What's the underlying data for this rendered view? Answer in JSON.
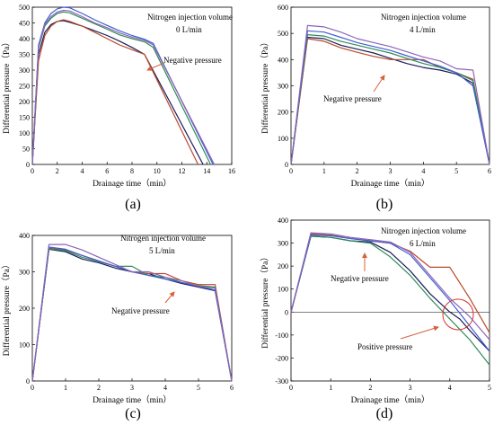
{
  "colors": {
    "series": [
      "#1b1b5c",
      "#b84a2a",
      "#2e8b57",
      "#3e5fd0",
      "#8e63b8"
    ],
    "arrow": "#d7603d",
    "circle": "#d9302c"
  },
  "chart_data": [
    {
      "type": "line",
      "panel_label": "(a)",
      "annotation_title": "Nitrogen injection volume",
      "annotation_value": "0 L/min",
      "pressure_note": "Negative pressure",
      "xlabel": "Drainage time（min）",
      "ylabel": "Differential pressure（Pa）",
      "xlim": [
        0,
        16
      ],
      "ylim": [
        0,
        500
      ],
      "xticks": [
        0,
        2,
        4,
        6,
        8,
        10,
        12,
        14,
        16
      ],
      "yticks": [
        0,
        50,
        100,
        150,
        200,
        250,
        300,
        350,
        400,
        450,
        500
      ],
      "series": [
        {
          "x": [
            0,
            0.5,
            1,
            1.5,
            2,
            2.5,
            3,
            4,
            5,
            6,
            7,
            8,
            9,
            13.7
          ],
          "y": [
            0,
            350,
            420,
            445,
            455,
            457,
            452,
            440,
            425,
            410,
            392,
            372,
            350,
            0
          ]
        },
        {
          "x": [
            0,
            0.5,
            1,
            1.5,
            2,
            2.5,
            3,
            4,
            5,
            6,
            7,
            8,
            9,
            13.3
          ],
          "y": [
            0,
            330,
            410,
            440,
            455,
            460,
            455,
            440,
            420,
            400,
            380,
            365,
            350,
            0
          ]
        },
        {
          "x": [
            0,
            0.5,
            1,
            1.5,
            2,
            2.5,
            3,
            4,
            5,
            6,
            7,
            8,
            9,
            9.7,
            14.3
          ],
          "y": [
            0,
            370,
            440,
            465,
            480,
            485,
            482,
            465,
            447,
            430,
            412,
            400,
            390,
            372,
            0
          ]
        },
        {
          "x": [
            0,
            0.5,
            1,
            1.5,
            2,
            2.5,
            3,
            4,
            5,
            6,
            7,
            8,
            9,
            9.7,
            14.5
          ],
          "y": [
            0,
            380,
            450,
            480,
            495,
            500,
            498,
            480,
            460,
            442,
            425,
            410,
            398,
            385,
            0
          ]
        },
        {
          "x": [
            0,
            0.5,
            1,
            1.5,
            2,
            2.5,
            3,
            4,
            5,
            6,
            7,
            8,
            9,
            9.7,
            14.6
          ],
          "y": [
            0,
            375,
            445,
            470,
            485,
            490,
            488,
            470,
            450,
            435,
            418,
            405,
            395,
            380,
            0
          ]
        }
      ]
    },
    {
      "type": "line",
      "panel_label": "(b)",
      "annotation_title": "Nitrogen injection volume",
      "annotation_value": "4 L/min",
      "pressure_note": "Negative pressure",
      "xlabel": "Drainage time（min）",
      "ylabel": "Differential pressure（Pa）",
      "xlim": [
        0,
        6
      ],
      "ylim": [
        0,
        600
      ],
      "xticks": [
        0,
        1,
        2,
        3,
        4,
        5,
        6
      ],
      "yticks": [
        0,
        100,
        200,
        300,
        400,
        500,
        600
      ],
      "series": [
        {
          "x": [
            0,
            0.5,
            1,
            1.5,
            2,
            2.5,
            3,
            3.5,
            4,
            4.5,
            5,
            5.5,
            6
          ],
          "y": [
            0,
            485,
            480,
            455,
            440,
            425,
            405,
            385,
            370,
            360,
            345,
            310,
            0
          ]
        },
        {
          "x": [
            0,
            0.5,
            1,
            1.5,
            2,
            2.5,
            3,
            3.5,
            4,
            4.5,
            5,
            5.5,
            6
          ],
          "y": [
            0,
            480,
            470,
            445,
            428,
            412,
            400,
            400,
            400,
            370,
            350,
            325,
            0
          ]
        },
        {
          "x": [
            0,
            0.5,
            1,
            1.5,
            2,
            2.5,
            3,
            3.5,
            4,
            4.5,
            5,
            5.5,
            6
          ],
          "y": [
            0,
            495,
            490,
            470,
            455,
            440,
            425,
            405,
            385,
            370,
            350,
            320,
            0
          ]
        },
        {
          "x": [
            0,
            0.5,
            1,
            1.5,
            2,
            2.5,
            3,
            3.5,
            4,
            4.5,
            5,
            5.5,
            6
          ],
          "y": [
            0,
            510,
            505,
            485,
            465,
            450,
            435,
            415,
            395,
            375,
            350,
            300,
            0
          ]
        },
        {
          "x": [
            0,
            0.5,
            1,
            1.5,
            2,
            2.5,
            3,
            3.5,
            4,
            4.5,
            5,
            5.5,
            6
          ],
          "y": [
            0,
            530,
            525,
            505,
            480,
            465,
            450,
            430,
            410,
            395,
            365,
            360,
            0
          ]
        }
      ]
    },
    {
      "type": "line",
      "panel_label": "(c)",
      "annotation_title": "Nitrogen injection volume",
      "annotation_value": "5 L/min",
      "pressure_note": "Negative pressure",
      "xlabel": "Drainage time（min）",
      "ylabel": "Differential pressure（Pa）",
      "xlim": [
        0,
        6
      ],
      "ylim": [
        0,
        400
      ],
      "xticks": [
        0,
        1,
        2,
        3,
        4,
        5,
        6
      ],
      "yticks": [
        0,
        100,
        200,
        300,
        400
      ],
      "series": [
        {
          "x": [
            0,
            0.5,
            1,
            1.5,
            2,
            2.5,
            3,
            3.5,
            4,
            4.5,
            5,
            5.5,
            6
          ],
          "y": [
            0,
            362,
            355,
            335,
            325,
            310,
            300,
            295,
            280,
            268,
            258,
            248,
            0
          ]
        },
        {
          "x": [
            0,
            0.5,
            1,
            1.5,
            2,
            2.5,
            3,
            3.5,
            4,
            4.5,
            5,
            5.5,
            6
          ],
          "y": [
            0,
            365,
            360,
            345,
            330,
            315,
            300,
            295,
            295,
            275,
            265,
            265,
            0
          ]
        },
        {
          "x": [
            0,
            0.5,
            1,
            1.5,
            2,
            2.5,
            3,
            3.5,
            4,
            4.5,
            5,
            5.5,
            6
          ],
          "y": [
            0,
            363,
            358,
            340,
            328,
            315,
            315,
            290,
            285,
            270,
            262,
            258,
            0
          ]
        },
        {
          "x": [
            0,
            0.5,
            1,
            1.5,
            2,
            2.5,
            3,
            3.5,
            4,
            4.5,
            5,
            5.5,
            6
          ],
          "y": [
            0,
            368,
            362,
            345,
            330,
            315,
            300,
            290,
            280,
            270,
            260,
            250,
            0
          ]
        },
        {
          "x": [
            0,
            0.5,
            1,
            1.5,
            2,
            2.5,
            3,
            3.5,
            4,
            4.5,
            5,
            5.5,
            6
          ],
          "y": [
            0,
            375,
            375,
            360,
            340,
            320,
            300,
            300,
            285,
            275,
            260,
            255,
            0
          ]
        }
      ]
    },
    {
      "type": "line",
      "panel_label": "(d)",
      "annotation_title": "Nitrogen injection volume",
      "annotation_value": "6 L/min",
      "pressure_note": "Negative pressure",
      "pressure_note_2": "Positive pressure",
      "xlabel": "Drainage time（min）",
      "ylabel": "Differential pressure（Pa）",
      "xlim": [
        0,
        5
      ],
      "ylim": [
        -300,
        400
      ],
      "xticks": [
        0,
        1,
        2,
        3,
        4,
        5
      ],
      "yticks": [
        -300,
        -200,
        -100,
        0,
        100,
        200,
        300,
        400
      ],
      "series": [
        {
          "x": [
            0,
            0.5,
            1,
            1.5,
            2,
            2.5,
            3,
            3.5,
            4,
            4.25,
            4.5,
            5
          ],
          "y": [
            0,
            330,
            325,
            310,
            305,
            260,
            180,
            80,
            0,
            -30,
            -80,
            -170
          ]
        },
        {
          "x": [
            0,
            0.5,
            1,
            1.5,
            2,
            2.5,
            3,
            3.5,
            4,
            4.5,
            5
          ],
          "y": [
            0,
            340,
            335,
            320,
            310,
            300,
            265,
            195,
            195,
            60,
            -90
          ]
        },
        {
          "x": [
            0,
            0.5,
            1,
            1.5,
            2,
            2.5,
            3,
            3.5,
            4,
            4.5,
            5
          ],
          "y": [
            0,
            330,
            325,
            310,
            300,
            240,
            160,
            60,
            -30,
            -120,
            -230
          ]
        },
        {
          "x": [
            0,
            0.5,
            1,
            1.5,
            2,
            2.5,
            3,
            3.5,
            4,
            4.5,
            5
          ],
          "y": [
            0,
            335,
            332,
            320,
            310,
            300,
            250,
            150,
            50,
            -60,
            -170
          ]
        },
        {
          "x": [
            0,
            0.5,
            1,
            1.5,
            2,
            2.5,
            3,
            3.5,
            4,
            4.5,
            5
          ],
          "y": [
            0,
            345,
            340,
            325,
            315,
            305,
            260,
            160,
            60,
            -20,
            -120
          ]
        }
      ]
    }
  ]
}
